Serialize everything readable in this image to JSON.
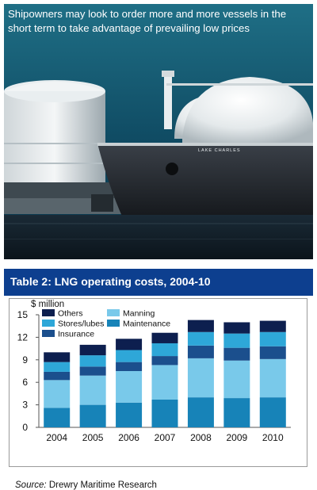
{
  "caption": "Shipowners may look to order more and more vessels in the short term to take advantage of prevailing low prices",
  "photo": {
    "ship_name": "LAKE CHARLES"
  },
  "chart_title": "Table 2: LNG operating costs, 2004-10",
  "source": {
    "label": "Source:",
    "text": " Drewry Maritime Research"
  },
  "colors": {
    "Others": "#0d1f4f",
    "Stores/lubes": "#2ea7d8",
    "Insurance": "#1b4f8d",
    "Manning": "#79c9ea",
    "Maintenance": "#1783b8",
    "title_bar": "#0d3f8f"
  },
  "chart_data": {
    "type": "bar",
    "stacked": true,
    "title": "Table 2: LNG operating costs, 2004-10",
    "ylabel": "$ million",
    "xlabel": "",
    "ylim": [
      0,
      15
    ],
    "yticks": [
      0,
      3,
      6,
      9,
      12,
      15
    ],
    "grid": false,
    "legend_position": "top-left",
    "legend_order": [
      "Others",
      "Manning",
      "Stores/lubes",
      "Maintenance",
      "Insurance"
    ],
    "categories": [
      "2004",
      "2005",
      "2006",
      "2007",
      "2008",
      "2009",
      "2010"
    ],
    "series": [
      {
        "name": "Maintenance",
        "values": [
          2.6,
          3.0,
          3.3,
          3.7,
          4.0,
          3.9,
          4.0
        ]
      },
      {
        "name": "Manning",
        "values": [
          3.7,
          3.9,
          4.2,
          4.6,
          5.2,
          5.0,
          5.1
        ]
      },
      {
        "name": "Insurance",
        "values": [
          1.1,
          1.2,
          1.2,
          1.2,
          1.7,
          1.7,
          1.7
        ]
      },
      {
        "name": "Stores/lubes",
        "values": [
          1.3,
          1.5,
          1.6,
          1.7,
          1.8,
          1.9,
          1.9
        ]
      },
      {
        "name": "Others",
        "values": [
          1.3,
          1.4,
          1.5,
          1.4,
          1.6,
          1.5,
          1.5
        ]
      }
    ]
  }
}
